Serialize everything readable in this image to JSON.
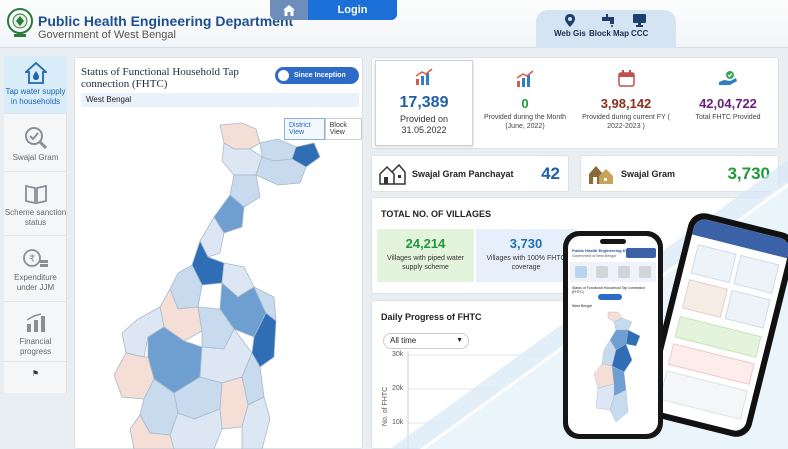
{
  "header": {
    "title": "Public Health Engineering Department",
    "subtitle": "Government of West Bengal",
    "login_label": "Login",
    "nav": [
      {
        "label": "Web Gis",
        "icon": "pin-icon"
      },
      {
        "label": "Block Map",
        "icon": "tap-icon"
      },
      {
        "label": "CCC",
        "icon": "monitor-icon"
      }
    ]
  },
  "sidebar": {
    "items": [
      {
        "label": "Tap water supply in households",
        "icon": "house-drop-icon",
        "active": true
      },
      {
        "label": "Swajal Gram",
        "icon": "magnifier-icon",
        "active": false
      },
      {
        "label": "Scheme sanction status",
        "icon": "book-icon",
        "active": false
      },
      {
        "label": "Expenditure under JJM",
        "icon": "rupee-icon",
        "active": false
      },
      {
        "label": "Financial progress",
        "icon": "chart-icon",
        "active": false
      }
    ],
    "flag_icon": "flag-icon"
  },
  "map_panel": {
    "title": "Status of Functional Household Tap connection (FHTC)",
    "toggle_label": "Since Inception",
    "state": "West Bengal",
    "view_district": "District View",
    "view_block": "Block View"
  },
  "kpis": [
    {
      "value": "17,389",
      "label": "Provided on 31.05.2022",
      "color": "#1f5faa",
      "icon": "growth-chart-icon"
    },
    {
      "value": "0",
      "label": "Provided during the Month (June, 2022)",
      "color": "#1f9a3a",
      "icon": "growth-chart-icon"
    },
    {
      "value": "3,98,142",
      "label": "Provided during current FY ( 2022-2023 )",
      "color": "#8b2e1a",
      "icon": "calendar-icon"
    },
    {
      "value": "42,04,722",
      "label": "Total FHTC Provided",
      "color": "#6b1e7a",
      "icon": "hand-check-icon"
    }
  ],
  "swajal": {
    "panchayat_label": "Swajal Gram Panchayat",
    "panchayat_value": "42",
    "gram_label": "Swajal Gram",
    "gram_value": "3,730"
  },
  "villages": {
    "title": "TOTAL NO. OF VILLAGES",
    "items": [
      {
        "value": "24,214",
        "label": "Villages with piped water supply scheme",
        "color": "#1f9a3a"
      },
      {
        "value": "3,730",
        "label": "Villages with 100% FHTC coverage",
        "color": "#1f6fb3"
      }
    ]
  },
  "daily": {
    "title": "Daily Progress of FHTC",
    "period": "All time",
    "y_ticks": [
      "30k",
      "20k",
      "10k"
    ],
    "y_label": "No. of FHTC"
  },
  "phone_mock": {
    "title": "Public Health Engineering Department",
    "subtitle": "Government of West Bengal",
    "map_title": "Status of Functional Household Tap connection (FHTC)",
    "state": "West Bengal"
  },
  "colors": {
    "brand": "#1d4f91",
    "accent": "#1c6fd6",
    "map_dark": "#2f6db5",
    "map_mid": "#6f9fd1",
    "map_light": "#c7daee",
    "map_pale": "#f5ded6"
  }
}
